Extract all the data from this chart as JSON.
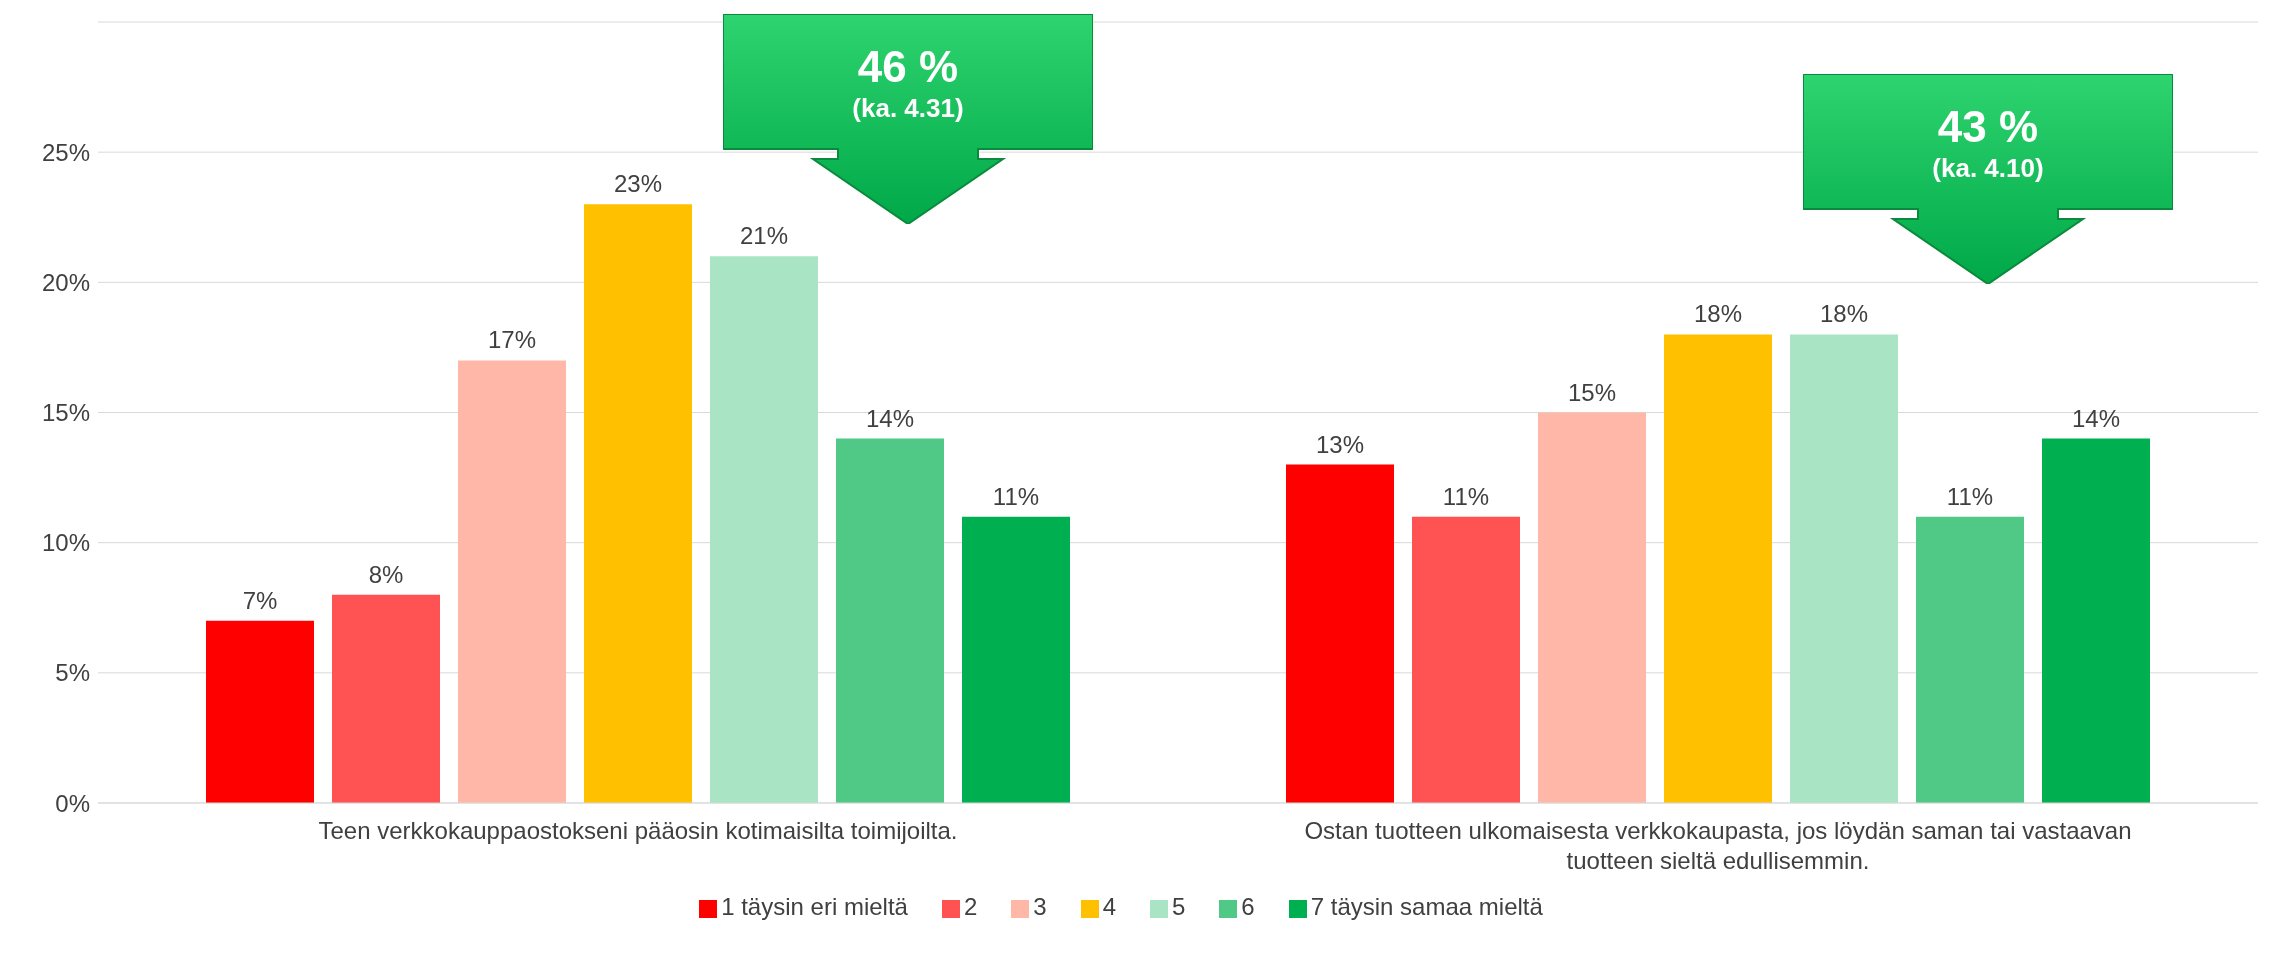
{
  "chart_data": {
    "type": "bar",
    "categories": [
      "Teen verkkokauppaostokseni pääosin kotimaisilta toimijoilta.",
      "Ostan tuotteen ulkomaisesta verkkokaupasta, jos löydän saman tai vastaavan tuotteen sieltä edullisemmin."
    ],
    "series": [
      {
        "name": "1 täysin eri mieltä",
        "color": "#ff0000",
        "values": [
          7,
          13
        ],
        "value_labels": [
          "7%",
          "13%"
        ]
      },
      {
        "name": "2",
        "color": "#ff5252",
        "values": [
          8,
          11
        ],
        "value_labels": [
          "8%",
          "11%"
        ]
      },
      {
        "name": "3",
        "color": "#ffb7a7",
        "values": [
          17,
          15
        ],
        "value_labels": [
          "17%",
          "15%"
        ]
      },
      {
        "name": "4",
        "color": "#ffc000",
        "values": [
          23,
          18
        ],
        "value_labels": [
          "23%",
          "18%"
        ]
      },
      {
        "name": "5",
        "color": "#a9e4c4",
        "values": [
          21,
          18
        ],
        "value_labels": [
          "21%",
          "18%"
        ]
      },
      {
        "name": "6",
        "color": "#50c987",
        "values": [
          14,
          11
        ],
        "value_labels": [
          "14%",
          "11%"
        ]
      },
      {
        "name": "7 täysin samaa mieltä",
        "color": "#00b050",
        "values": [
          11,
          14
        ],
        "value_labels": [
          "11%",
          "14%"
        ]
      }
    ],
    "ylim": [
      0,
      30
    ],
    "yticks": [
      {
        "value": 0,
        "label": "0%"
      },
      {
        "value": 5,
        "label": "5%"
      },
      {
        "value": 10,
        "label": "10%"
      },
      {
        "value": 15,
        "label": "15%"
      },
      {
        "value": 20,
        "label": "20%"
      },
      {
        "value": 25,
        "label": "25%"
      }
    ],
    "grid": "y",
    "legend": "bottom",
    "annotations": [
      "46 %\n(ka. 4.31)",
      "43 %\n(ka. 4.10)"
    ]
  }
}
